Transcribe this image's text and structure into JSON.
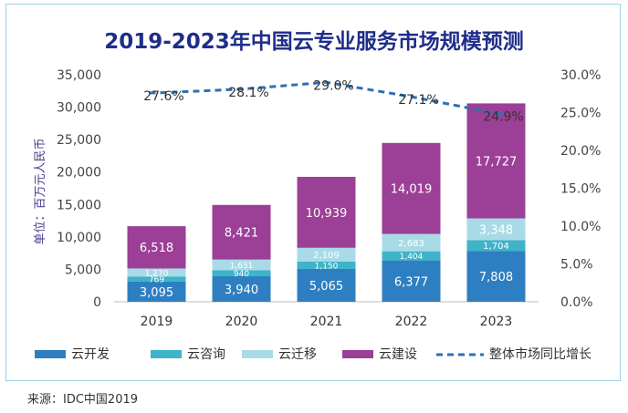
{
  "chart_data": {
    "type": "bar",
    "stacked": true,
    "title": "2019-2023年中国云专业服务市场规模预测",
    "ylabel": "单位：百万元人民币",
    "categories": [
      "2019",
      "2020",
      "2021",
      "2022",
      "2023"
    ],
    "ylim": [
      0,
      35000
    ],
    "yticks": [
      "0",
      "5,000",
      "10,000",
      "15,000",
      "20,000",
      "25,000",
      "30,000",
      "35,000"
    ],
    "y2lim": [
      0,
      30
    ],
    "y2ticks": [
      "0.0%",
      "5.0%",
      "10.0%",
      "15.0%",
      "20.0%",
      "25.0%",
      "30.0%"
    ],
    "series": [
      {
        "name": "云开发",
        "color": "#2e7fc1",
        "values": [
          3095,
          3940,
          5065,
          6377,
          7808
        ],
        "labels": [
          "3,095",
          "3,940",
          "5,065",
          "6,377",
          "7,808"
        ]
      },
      {
        "name": "云咨询",
        "color": "#3fb3c8",
        "values": [
          769,
          940,
          1150,
          1404,
          1704
        ],
        "labels": [
          "769",
          "940",
          "1,150",
          "1,404",
          "1,704"
        ]
      },
      {
        "name": "云迁移",
        "color": "#a8dbe7",
        "values": [
          1270,
          1631,
          2109,
          2683,
          3348
        ],
        "labels": [
          "1,270",
          "1,631",
          "2,109",
          "2,683",
          "3,348"
        ]
      },
      {
        "name": "云建设",
        "color": "#9c3f96",
        "values": [
          6518,
          8421,
          10939,
          14019,
          17727
        ],
        "labels": [
          "6,518",
          "8,421",
          "10,939",
          "14,019",
          "17,727"
        ]
      }
    ],
    "line": {
      "name": "整体市场同比增长",
      "color": "#2f6fb3",
      "values": [
        27.6,
        28.1,
        29.0,
        27.1,
        24.9
      ],
      "labels": [
        "27.6%",
        "28.1%",
        "29.0%",
        "27.1%",
        "24.9%"
      ]
    }
  },
  "source": "来源：IDC中国2019"
}
